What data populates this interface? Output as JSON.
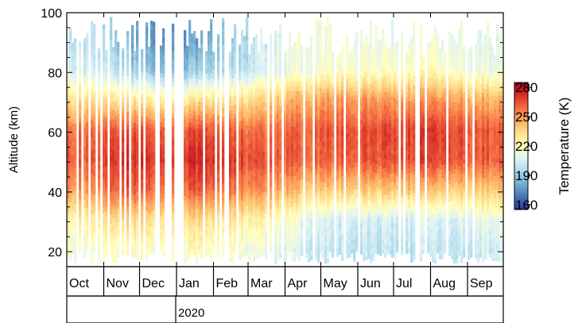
{
  "chart_data": {
    "type": "heatmap",
    "ylabel": "Altitude (km)",
    "ylim": [
      15,
      100
    ],
    "y_ticks": [
      20,
      40,
      60,
      80,
      100
    ],
    "x_months": [
      "Oct",
      "Nov",
      "Dec",
      "Jan",
      "Feb",
      "Mar",
      "Apr",
      "May",
      "Jun",
      "Jul",
      "Aug",
      "Sep"
    ],
    "x_year_label": "2020",
    "colorbar": {
      "label": "Temperature (K)",
      "range": [
        155,
        285
      ],
      "ticks": [
        160,
        190,
        220,
        250,
        280
      ],
      "colormap": [
        "#313695",
        "#4575b4",
        "#74add1",
        "#abd9e9",
        "#e0f3f8",
        "#ffffbf",
        "#fee090",
        "#fdae61",
        "#f46d43",
        "#d73027",
        "#a50026"
      ]
    },
    "grid": false,
    "temperature_profiles_by_month": {
      "description_free_values": true,
      "altitudes_km": [
        20,
        30,
        40,
        50,
        60,
        70,
        80,
        90
      ],
      "Oct": [
        215,
        225,
        250,
        262,
        258,
        232,
        205,
        200
      ],
      "Nov": [
        218,
        235,
        262,
        272,
        264,
        230,
        195,
        185
      ],
      "Dec": [
        218,
        232,
        258,
        270,
        262,
        228,
        185,
        175
      ],
      "Jan": [
        218,
        232,
        260,
        272,
        264,
        230,
        188,
        178
      ],
      "Feb": [
        216,
        228,
        255,
        268,
        260,
        230,
        195,
        190
      ],
      "Mar": [
        210,
        222,
        248,
        262,
        256,
        235,
        205,
        205
      ],
      "Apr": [
        205,
        212,
        240,
        262,
        262,
        248,
        215,
        215
      ],
      "May": [
        200,
        205,
        238,
        262,
        265,
        250,
        218,
        215
      ],
      "Jun": [
        200,
        205,
        240,
        265,
        266,
        250,
        218,
        212
      ],
      "Jul": [
        200,
        205,
        240,
        266,
        268,
        250,
        220,
        212
      ],
      "Aug": [
        200,
        205,
        238,
        265,
        268,
        250,
        218,
        210
      ],
      "Sep": [
        205,
        212,
        240,
        262,
        262,
        245,
        212,
        210
      ]
    }
  }
}
